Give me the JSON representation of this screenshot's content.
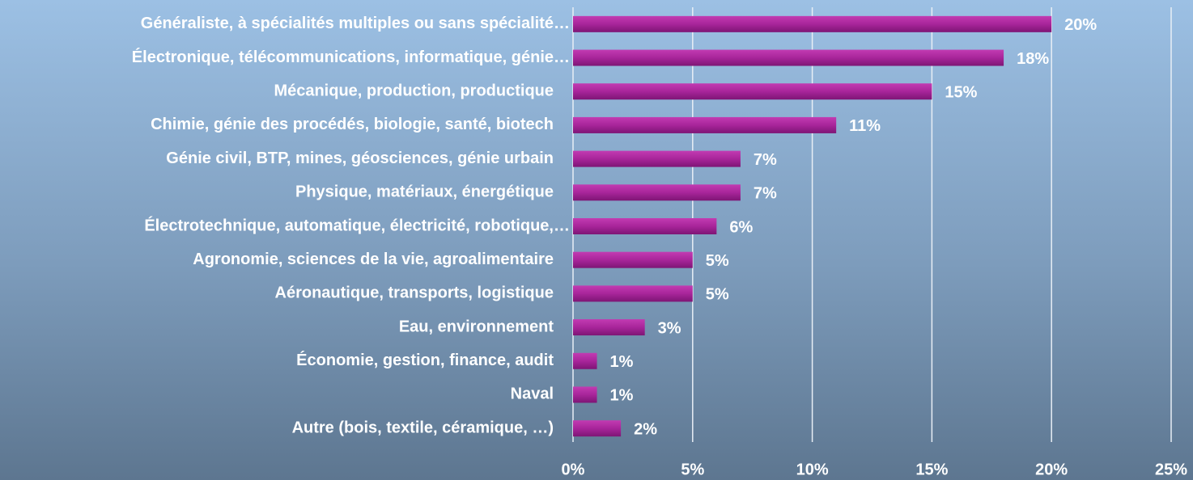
{
  "chart_data": {
    "type": "bar",
    "orientation": "horizontal",
    "categories": [
      "Généraliste, à spécialités multiples ou sans spécialité…",
      "Électronique, télécommunications, informatique, génie…",
      "Mécanique, production, productique",
      "Chimie, génie des procédés, biologie, santé, biotech",
      "Génie civil, BTP, mines, géosciences, génie urbain",
      "Physique, matériaux, énergétique",
      "Électrotechnique, automatique, électricité, robotique,…",
      "Agronomie, sciences de la vie, agroalimentaire",
      "Aéronautique, transports, logistique",
      "Eau, environnement",
      "Économie, gestion, finance, audit",
      "Naval",
      "Autre (bois, textile, céramique, …)"
    ],
    "values": [
      20,
      18,
      15,
      11,
      7,
      7,
      6,
      5,
      5,
      3,
      1,
      1,
      2
    ],
    "value_labels": [
      "20%",
      "18%",
      "15%",
      "11%",
      "7%",
      "7%",
      "6%",
      "5%",
      "5%",
      "3%",
      "1%",
      "1%",
      "2%"
    ],
    "color": "#a8259a",
    "xlim": [
      0,
      25
    ],
    "xticks": [
      {
        "value": 0,
        "label": "0%"
      },
      {
        "value": 5,
        "label": "5%"
      },
      {
        "value": 10,
        "label": "10%"
      },
      {
        "value": 15,
        "label": "15%"
      },
      {
        "value": 20,
        "label": "20%"
      },
      {
        "value": 25,
        "label": "25%"
      }
    ],
    "grid": true
  }
}
